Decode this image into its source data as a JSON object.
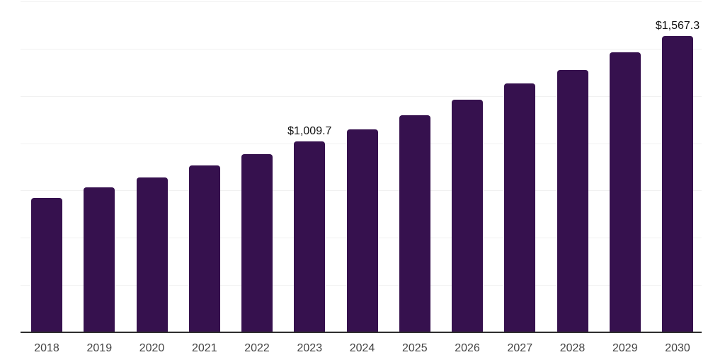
{
  "chart_data": {
    "type": "bar",
    "title": "",
    "xlabel": "",
    "ylabel": "",
    "categories": [
      "2018",
      "2019",
      "2020",
      "2021",
      "2022",
      "2023",
      "2024",
      "2025",
      "2026",
      "2027",
      "2028",
      "2029",
      "2030"
    ],
    "values": [
      711,
      766,
      820,
      883,
      941,
      1009.7,
      1075,
      1150,
      1231,
      1315,
      1388,
      1482,
      1567.3
    ],
    "annotations": [
      {
        "category": "2023",
        "text": "$1,009.7"
      },
      {
        "category": "2030",
        "text": "$1,567.3"
      }
    ],
    "ylim": [
      0,
      1750
    ],
    "grid_step": 250,
    "grid_on": true,
    "legend_position": "none",
    "y_axis_labels_visible": false,
    "colors": {
      "bar": "#36114E",
      "gridline": "#f1f1f1",
      "axis_line": "#2e2e2e",
      "x_tick_label": "#444444",
      "value_label": "#111111",
      "background": "#ffffff"
    }
  }
}
